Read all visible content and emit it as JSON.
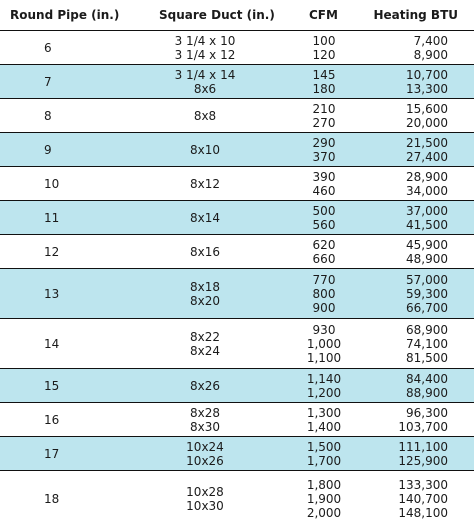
{
  "headers": {
    "round_pipe": "Round Pipe (in.)",
    "square_duct": "Square Duct (in.)",
    "cfm": "CFM",
    "heating_btu": "Heating BTU"
  },
  "rows": [
    {
      "pipe": "6",
      "duct": [
        "3 1/4 x 10",
        "3 1/4 x 12"
      ],
      "cfm": [
        "100",
        "120"
      ],
      "btu": [
        "7,400",
        "8,900"
      ],
      "shaded": false
    },
    {
      "pipe": "7",
      "duct": [
        "3 1/4 x 14",
        "8x6"
      ],
      "cfm": [
        "145",
        "180"
      ],
      "btu": [
        "10,700",
        "13,300"
      ],
      "shaded": true
    },
    {
      "pipe": "8",
      "duct": [
        "8x8"
      ],
      "cfm": [
        "210",
        "270"
      ],
      "btu": [
        "15,600",
        "20,000"
      ],
      "shaded": false
    },
    {
      "pipe": "9",
      "duct": [
        "8x10"
      ],
      "cfm": [
        "290",
        "370"
      ],
      "btu": [
        "21,500",
        "27,400"
      ],
      "shaded": true
    },
    {
      "pipe": "10",
      "duct": [
        "8x12"
      ],
      "cfm": [
        "390",
        "460"
      ],
      "btu": [
        "28,900",
        "34,000"
      ],
      "shaded": false
    },
    {
      "pipe": "11",
      "duct": [
        "8x14"
      ],
      "cfm": [
        "500",
        "560"
      ],
      "btu": [
        "37,000",
        "41,500"
      ],
      "shaded": true
    },
    {
      "pipe": "12",
      "duct": [
        "8x16"
      ],
      "cfm": [
        "620",
        "660"
      ],
      "btu": [
        "45,900",
        "48,900"
      ],
      "shaded": false
    },
    {
      "pipe": "13",
      "duct": [
        "8x18",
        "8x20"
      ],
      "cfm": [
        "770",
        "800",
        "900"
      ],
      "btu": [
        "57,000",
        "59,300",
        "66,700"
      ],
      "shaded": true
    },
    {
      "pipe": "14",
      "duct": [
        "8x22",
        "8x24"
      ],
      "cfm": [
        "930",
        "1,000",
        "1,100"
      ],
      "btu": [
        "68,900",
        "74,100",
        "81,500"
      ],
      "shaded": false
    },
    {
      "pipe": "15",
      "duct": [
        "8x26"
      ],
      "cfm": [
        "1,140",
        "1,200"
      ],
      "btu": [
        "84,400",
        "88,900"
      ],
      "shaded": true
    },
    {
      "pipe": "16",
      "duct": [
        "8x28",
        "8x30"
      ],
      "cfm": [
        "1,300",
        "1,400"
      ],
      "btu": [
        "96,300",
        "103,700"
      ],
      "shaded": false
    },
    {
      "pipe": "17",
      "duct": [
        "10x24",
        "10x26"
      ],
      "cfm": [
        "1,500",
        "1,700"
      ],
      "btu": [
        "111,100",
        "125,900"
      ],
      "shaded": true
    },
    {
      "pipe": "18",
      "duct": [
        "10x28",
        "10x30"
      ],
      "cfm": [
        "1,800",
        "1,900",
        "2,000"
      ],
      "btu": [
        "133,300",
        "140,700",
        "148,100"
      ],
      "shaded": false
    }
  ]
}
